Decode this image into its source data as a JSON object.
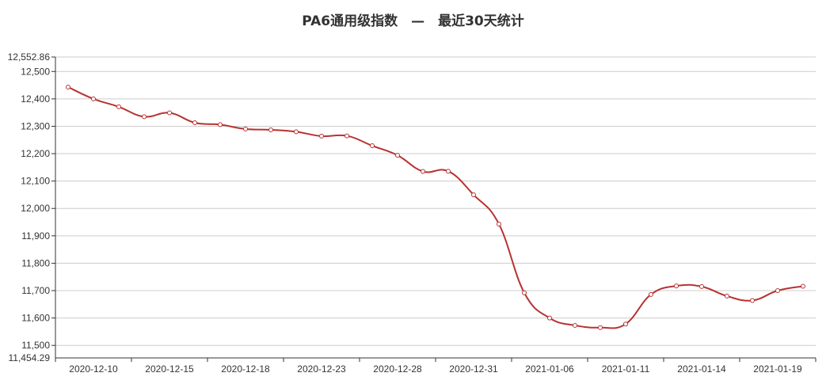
{
  "chart_data": {
    "type": "line",
    "title": "PA6通用级指数　—　最近30天统计",
    "xlabel": "",
    "ylabel": "",
    "ylim": [
      11454.29,
      12552.86
    ],
    "y_ticks": [
      11500,
      11600,
      11700,
      11800,
      11900,
      12000,
      12100,
      12200,
      12300,
      12400,
      12500
    ],
    "y_tick_labels": [
      "11,500",
      "11,600",
      "11,700",
      "11,800",
      "11,900",
      "12,000",
      "12,100",
      "12,200",
      "12,300",
      "12,400",
      "12,500"
    ],
    "y_min_label": "11,454.29",
    "y_max_label": "12,552.86",
    "x_tick_labels": [
      "2020-12-10",
      "2020-12-15",
      "2020-12-18",
      "2020-12-23",
      "2020-12-28",
      "2020-12-31",
      "2021-01-06",
      "2021-01-11",
      "2021-01-14",
      "2021-01-19"
    ],
    "grid": true,
    "line_color": "#b83232",
    "series": [
      {
        "values": [
          12443,
          12400,
          12371,
          12335,
          12349,
          12313,
          12306,
          12290,
          12287,
          12280,
          12264,
          12265,
          12229,
          12194,
          12135,
          12136,
          12050,
          11943,
          11692,
          11600,
          11573,
          11565,
          11578,
          11686,
          11717,
          11715,
          11680,
          11664,
          11700,
          11716
        ]
      }
    ]
  }
}
